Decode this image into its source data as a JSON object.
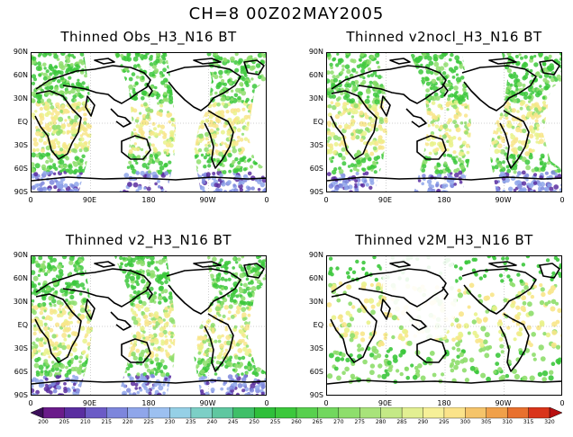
{
  "title": "CH=8   00Z02MAY2005",
  "panels": [
    {
      "title": "Thinned Obs_H3_N16 BT",
      "style": "dense",
      "gap": true
    },
    {
      "title": "Thinned v2nocl_H3_N16 BT",
      "style": "dense",
      "gap": true
    },
    {
      "title": "Thinned v2_H3_N16 BT",
      "style": "dense",
      "gap": true
    },
    {
      "title": "Thinned v2M_H3_N16 BT",
      "style": "sparse",
      "gap": false
    }
  ],
  "y_ticks": [
    "90N",
    "60N",
    "30N",
    "EQ",
    "30S",
    "60S",
    "90S"
  ],
  "x_ticks": [
    "0",
    "90E",
    "180",
    "90W",
    "0"
  ],
  "colorbar": {
    "labels": [
      "200",
      "205",
      "210",
      "215",
      "220",
      "225",
      "230",
      "235",
      "240",
      "245",
      "250",
      "255",
      "260",
      "265",
      "270",
      "275",
      "280",
      "285",
      "290",
      "295",
      "300",
      "305",
      "310",
      "315",
      "320"
    ],
    "colors": [
      "#3c0f5a",
      "#6a1b8a",
      "#5a2ea0",
      "#6b5bc6",
      "#7d86dc",
      "#8fa6ea",
      "#9cc0f0",
      "#95d0e6",
      "#7ccfc6",
      "#5fc7a0",
      "#3fbf68",
      "#2fbf3a",
      "#3cc83c",
      "#58d04e",
      "#72d75e",
      "#8ede6c",
      "#a8e37a",
      "#c4e986",
      "#e2ef92",
      "#f6f098",
      "#fbe38a",
      "#f5c46a",
      "#f0a04a",
      "#e8702e",
      "#d9341a",
      "#b81010"
    ]
  },
  "map_colors": {
    "ocean_light": "#e9f28a",
    "ocean_yellow": "#f8e58a",
    "green": "#3cc83c",
    "green_light": "#8ede6c",
    "blue": "#8fa6ea",
    "purple": "#5a2ea0",
    "orange": "#f0a04a"
  }
}
